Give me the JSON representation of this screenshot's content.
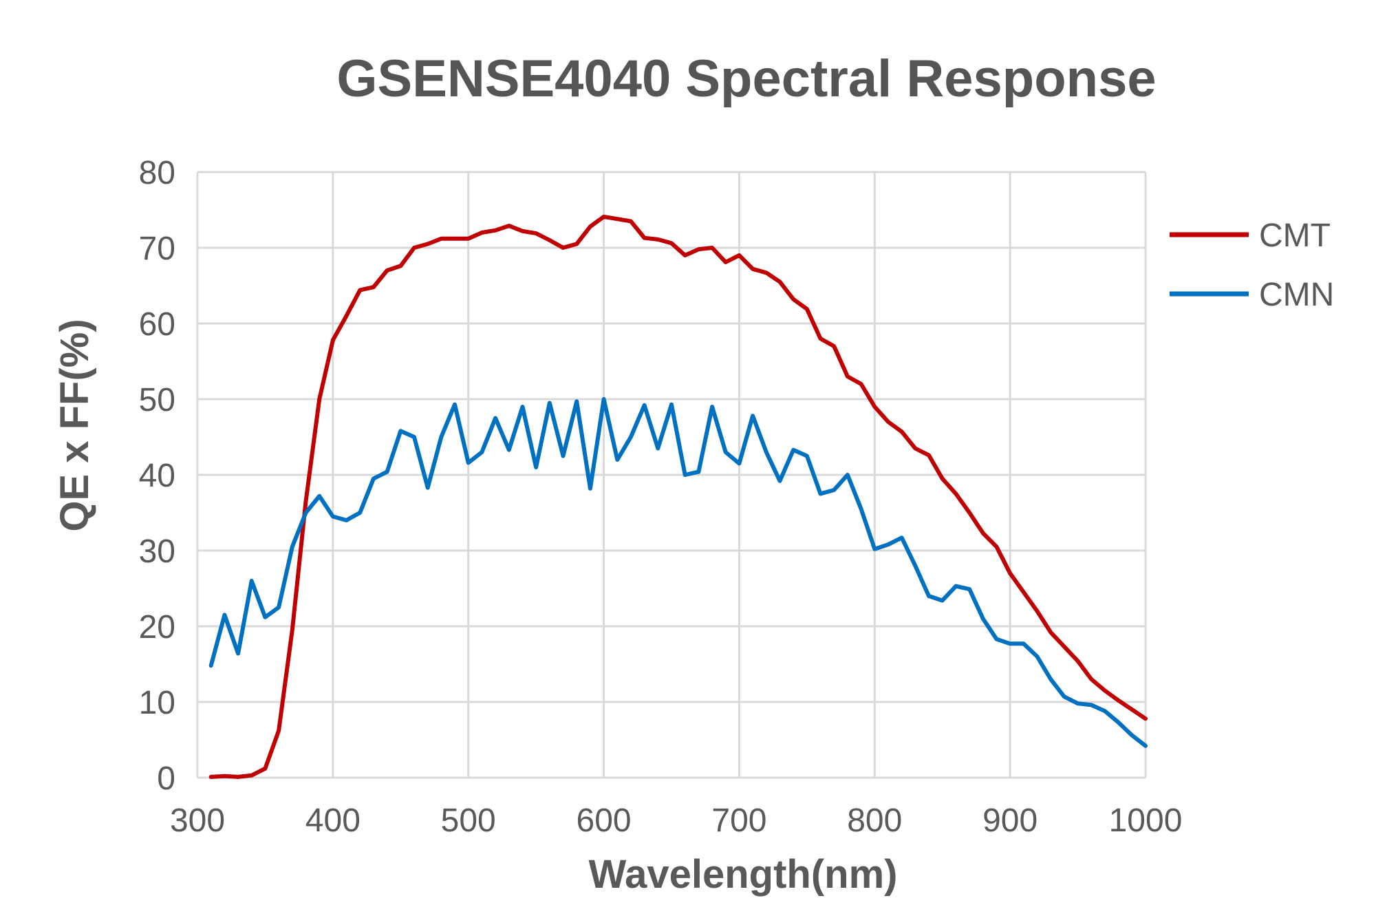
{
  "chart_data": {
    "type": "line",
    "title": "GSENSE4040 Spectral Response",
    "xlabel": "Wavelength(nm)",
    "ylabel": "QE x FF(%)",
    "xlim": [
      300,
      1000
    ],
    "ylim": [
      0,
      80
    ],
    "x_ticks": [
      "300",
      "400",
      "500",
      "600",
      "700",
      "800",
      "900",
      "1000"
    ],
    "y_ticks": [
      "0",
      "10",
      "20",
      "30",
      "40",
      "50",
      "60",
      "70",
      "80"
    ],
    "grid": true,
    "legend_position": "right",
    "series": [
      {
        "name": "CMT",
        "color": "#c00000",
        "x": [
          310,
          320,
          330,
          340,
          350,
          360,
          370,
          380,
          390,
          400,
          410,
          420,
          430,
          440,
          450,
          460,
          470,
          480,
          490,
          500,
          510,
          520,
          530,
          540,
          550,
          560,
          570,
          580,
          590,
          600,
          610,
          620,
          630,
          640,
          650,
          660,
          670,
          680,
          690,
          700,
          710,
          720,
          730,
          740,
          750,
          760,
          770,
          780,
          790,
          800,
          810,
          820,
          830,
          840,
          850,
          860,
          870,
          880,
          890,
          900,
          910,
          920,
          930,
          940,
          950,
          960,
          970,
          980,
          990,
          1000
        ],
        "y": [
          0.1,
          0.2,
          0.1,
          0.3,
          1.2,
          6.2,
          19.5,
          36.5,
          50.0,
          57.8,
          61.0,
          64.4,
          64.8,
          67.0,
          67.6,
          70.0,
          70.5,
          71.2,
          71.2,
          71.2,
          72.0,
          72.3,
          72.9,
          72.2,
          71.9,
          71.0,
          70.0,
          70.5,
          72.8,
          74.1,
          73.8,
          73.5,
          71.3,
          71.1,
          70.6,
          69.0,
          69.8,
          70.0,
          68.1,
          69.0,
          67.2,
          66.7,
          65.5,
          63.2,
          61.9,
          58.0,
          57.0,
          53.0,
          52.0,
          49.0,
          47.0,
          45.7,
          43.5,
          42.6,
          39.5,
          37.5,
          35.0,
          32.3,
          30.5,
          27.0,
          24.5,
          22.0,
          19.2,
          17.3,
          15.4,
          13.0,
          11.5,
          10.2,
          9.0,
          7.8
        ]
      },
      {
        "name": "CMN",
        "color": "#0070c0",
        "x": [
          310,
          320,
          330,
          340,
          350,
          360,
          370,
          380,
          390,
          400,
          410,
          420,
          430,
          440,
          450,
          460,
          470,
          480,
          490,
          500,
          510,
          520,
          530,
          540,
          550,
          560,
          570,
          580,
          590,
          600,
          610,
          620,
          630,
          640,
          650,
          660,
          670,
          680,
          690,
          700,
          710,
          720,
          730,
          740,
          750,
          760,
          770,
          780,
          790,
          800,
          810,
          820,
          830,
          840,
          850,
          860,
          870,
          880,
          890,
          900,
          910,
          920,
          930,
          940,
          950,
          960,
          970,
          980,
          990,
          1000
        ],
        "y": [
          14.8,
          21.5,
          16.4,
          26.0,
          21.2,
          22.5,
          30.5,
          35.0,
          37.2,
          34.5,
          34.0,
          35.0,
          39.5,
          40.4,
          45.8,
          45.0,
          38.3,
          45.0,
          49.3,
          41.6,
          43.0,
          47.5,
          43.3,
          49.0,
          41.0,
          49.5,
          42.5,
          49.7,
          38.2,
          50.0,
          42.0,
          45.0,
          49.2,
          43.5,
          49.3,
          40.0,
          40.4,
          49.0,
          43.0,
          41.5,
          47.8,
          43.0,
          39.2,
          43.3,
          42.5,
          37.5,
          38.0,
          40.0,
          35.5,
          30.2,
          30.8,
          31.7,
          28.0,
          24.0,
          23.4,
          25.3,
          24.9,
          21.0,
          18.3,
          17.7,
          17.7,
          16.0,
          13.0,
          10.7,
          9.8,
          9.6,
          8.8,
          7.3,
          5.6,
          4.2
        ]
      }
    ]
  }
}
